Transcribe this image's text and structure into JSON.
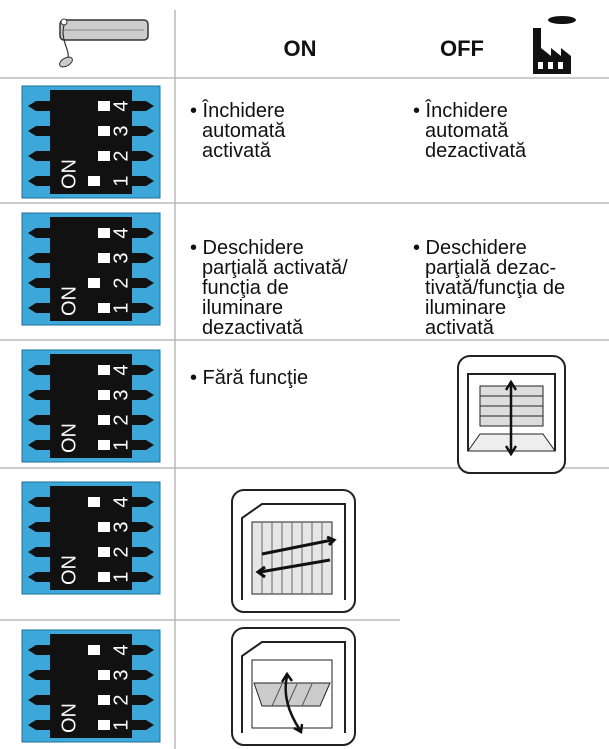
{
  "header": {
    "on": "ON",
    "off": "OFF"
  },
  "dip": {
    "on_label": "ON",
    "numbers": [
      "1",
      "2",
      "3",
      "4"
    ]
  },
  "rows": [
    {
      "on": [
        "• Închidere",
        "automată",
        "activată"
      ],
      "off": [
        "• Închidere",
        "automată",
        "dezactivată"
      ]
    },
    {
      "on": [
        "• Deschidere",
        "parţială activată/",
        "funcţia de",
        "iluminare",
        "dezactivată"
      ],
      "off": [
        "• Deschidere",
        "parţială dezac-",
        "tivată/funcţia de",
        "iluminare",
        "activată"
      ]
    },
    {
      "on": [
        "• Fără funcţie"
      ]
    }
  ]
}
